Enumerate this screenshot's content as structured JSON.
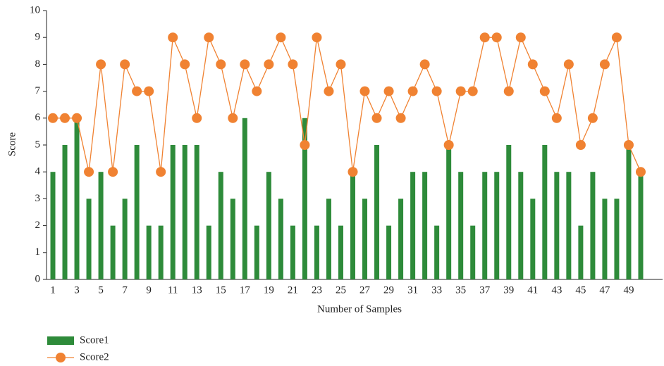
{
  "chart_data": {
    "type": "bar_line",
    "xlabel": "Number of Samples",
    "ylabel": "Score",
    "categories": [
      "1",
      null,
      "3",
      null,
      "5",
      null,
      "7",
      null,
      "9",
      null,
      "11",
      null,
      "13",
      null,
      "15",
      null,
      "17",
      null,
      "19",
      null,
      "21",
      null,
      "23",
      null,
      "25",
      null,
      "27",
      null,
      "29",
      null,
      "31",
      null,
      "33",
      null,
      "35",
      null,
      "37",
      null,
      "39",
      null,
      "41",
      null,
      "43",
      null,
      "45",
      null,
      "47",
      null,
      "49",
      null
    ],
    "ylim": [
      0,
      10
    ],
    "yticks": [
      0,
      1,
      2,
      3,
      4,
      5,
      6,
      7,
      8,
      9,
      10
    ],
    "series": [
      {
        "name": "Score1",
        "kind": "bar",
        "color": "#2e8b3a",
        "values": [
          4,
          5,
          6,
          3,
          4,
          2,
          3,
          5,
          2,
          2,
          5,
          5,
          5,
          2,
          4,
          3,
          6,
          2,
          4,
          3,
          2,
          6,
          2,
          3,
          2,
          4,
          3,
          5,
          2,
          3,
          4,
          4,
          2,
          5,
          4,
          2,
          4,
          4,
          5,
          4,
          3,
          5,
          4,
          4,
          2,
          4,
          3,
          3,
          5,
          4
        ]
      },
      {
        "name": "Score2",
        "kind": "line",
        "color": "#f08232",
        "values": [
          6,
          6,
          6,
          4,
          8,
          4,
          8,
          7,
          7,
          4,
          9,
          8,
          6,
          9,
          8,
          6,
          8,
          7,
          8,
          9,
          8,
          5,
          9,
          7,
          8,
          4,
          7,
          6,
          7,
          6,
          7,
          8,
          7,
          5,
          7,
          7,
          9,
          9,
          7,
          9,
          8,
          7,
          6,
          8,
          5,
          6,
          8,
          9,
          5,
          4
        ]
      }
    ]
  }
}
